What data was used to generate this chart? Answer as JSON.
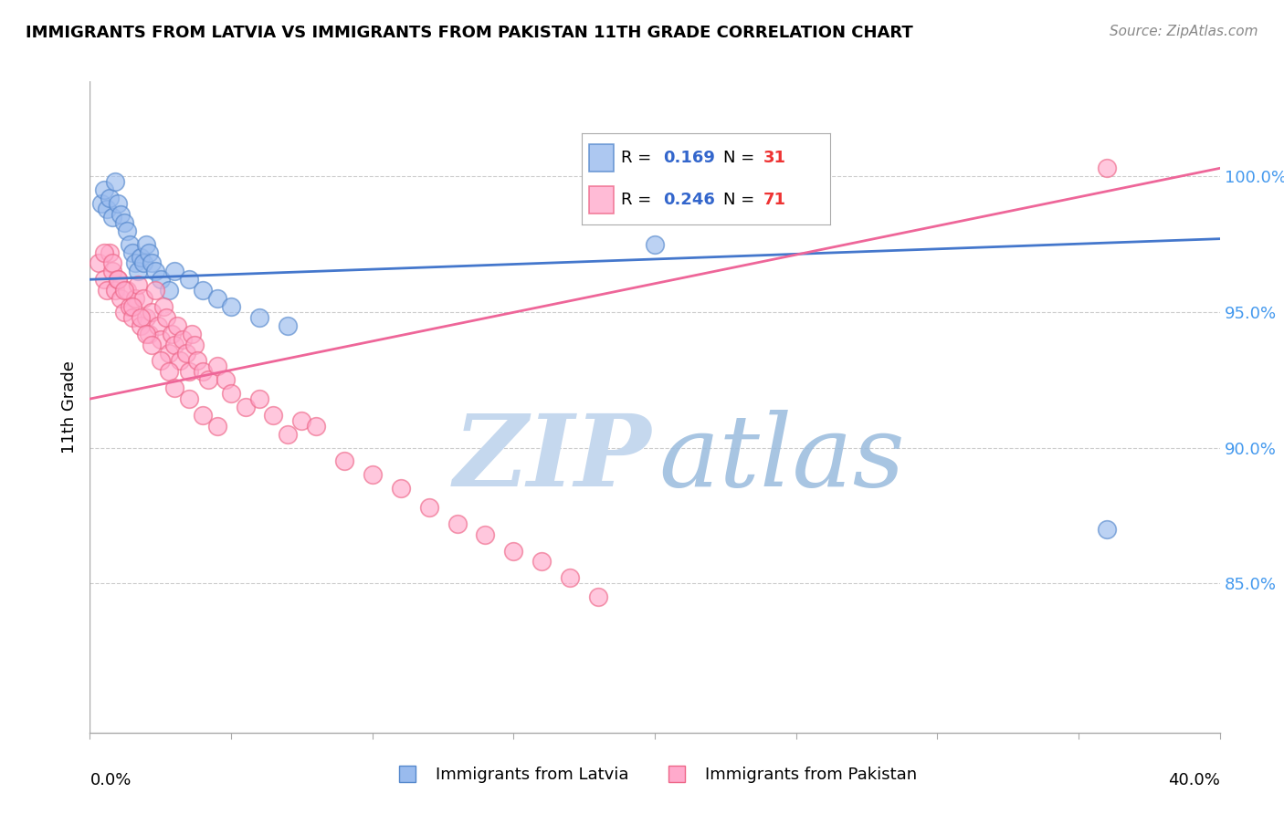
{
  "title": "IMMIGRANTS FROM LATVIA VS IMMIGRANTS FROM PAKISTAN 11TH GRADE CORRELATION CHART",
  "source": "Source: ZipAtlas.com",
  "ylabel": "11th Grade",
  "R_latvia": 0.169,
  "N_latvia": 31,
  "R_pakistan": 0.246,
  "N_pakistan": 71,
  "color_latvia_face": "#99BBEE",
  "color_latvia_edge": "#5588CC",
  "color_pakistan_face": "#FFAACC",
  "color_pakistan_edge": "#EE6688",
  "color_line_latvia": "#4477CC",
  "color_line_pakistan": "#EE6699",
  "watermark_zip_color": "#C5D8EE",
  "watermark_atlas_color": "#99BBDD",
  "background_color": "#FFFFFF",
  "xlim": [
    0.0,
    0.4
  ],
  "ylim": [
    0.795,
    1.035
  ],
  "ytick_positions": [
    0.85,
    0.9,
    0.95,
    1.0
  ],
  "ytick_labels": [
    "85.0%",
    "90.0%",
    "95.0%",
    "100.0%"
  ],
  "ytick_color": "#4499EE",
  "xtick_positions": [
    0.0,
    0.05,
    0.1,
    0.15,
    0.2,
    0.25,
    0.3,
    0.35,
    0.4
  ],
  "latvia_line_x0": 0.0,
  "latvia_line_y0": 0.962,
  "latvia_line_x1": 0.4,
  "latvia_line_y1": 0.977,
  "pakistan_line_x0": 0.0,
  "pakistan_line_y0": 0.918,
  "pakistan_line_x1": 0.4,
  "pakistan_line_y1": 1.003,
  "latvia_x": [
    0.004,
    0.005,
    0.006,
    0.007,
    0.008,
    0.009,
    0.01,
    0.011,
    0.012,
    0.013,
    0.014,
    0.015,
    0.016,
    0.017,
    0.018,
    0.019,
    0.02,
    0.021,
    0.022,
    0.023,
    0.025,
    0.028,
    0.03,
    0.035,
    0.04,
    0.045,
    0.05,
    0.06,
    0.07,
    0.2,
    0.36
  ],
  "latvia_y": [
    0.99,
    0.995,
    0.988,
    0.992,
    0.985,
    0.998,
    0.99,
    0.986,
    0.983,
    0.98,
    0.975,
    0.972,
    0.968,
    0.965,
    0.97,
    0.968,
    0.975,
    0.972,
    0.968,
    0.965,
    0.962,
    0.958,
    0.965,
    0.962,
    0.958,
    0.955,
    0.952,
    0.948,
    0.945,
    0.975,
    0.87
  ],
  "pakistan_x": [
    0.003,
    0.005,
    0.006,
    0.007,
    0.008,
    0.009,
    0.01,
    0.011,
    0.012,
    0.013,
    0.014,
    0.015,
    0.016,
    0.017,
    0.018,
    0.019,
    0.02,
    0.021,
    0.022,
    0.023,
    0.024,
    0.025,
    0.026,
    0.027,
    0.028,
    0.029,
    0.03,
    0.031,
    0.032,
    0.033,
    0.034,
    0.035,
    0.036,
    0.037,
    0.038,
    0.04,
    0.042,
    0.045,
    0.048,
    0.05,
    0.055,
    0.06,
    0.065,
    0.07,
    0.075,
    0.08,
    0.09,
    0.1,
    0.11,
    0.12,
    0.13,
    0.14,
    0.15,
    0.16,
    0.17,
    0.18,
    0.005,
    0.008,
    0.01,
    0.012,
    0.015,
    0.018,
    0.02,
    0.022,
    0.025,
    0.028,
    0.03,
    0.035,
    0.04,
    0.045,
    0.36
  ],
  "pakistan_y": [
    0.968,
    0.962,
    0.958,
    0.972,
    0.965,
    0.958,
    0.962,
    0.955,
    0.95,
    0.958,
    0.952,
    0.948,
    0.955,
    0.96,
    0.945,
    0.955,
    0.948,
    0.942,
    0.95,
    0.958,
    0.945,
    0.94,
    0.952,
    0.948,
    0.935,
    0.942,
    0.938,
    0.945,
    0.932,
    0.94,
    0.935,
    0.928,
    0.942,
    0.938,
    0.932,
    0.928,
    0.925,
    0.93,
    0.925,
    0.92,
    0.915,
    0.918,
    0.912,
    0.905,
    0.91,
    0.908,
    0.895,
    0.89,
    0.885,
    0.878,
    0.872,
    0.868,
    0.862,
    0.858,
    0.852,
    0.845,
    0.972,
    0.968,
    0.962,
    0.958,
    0.952,
    0.948,
    0.942,
    0.938,
    0.932,
    0.928,
    0.922,
    0.918,
    0.912,
    0.908,
    1.003
  ]
}
